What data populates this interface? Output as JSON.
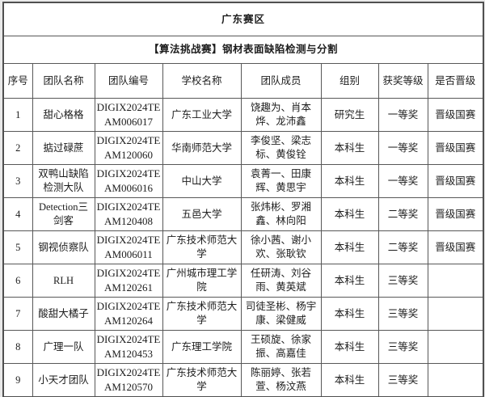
{
  "header": {
    "region_title": "广东赛区",
    "event_title": "【算法挑战赛】钢材表面缺陷检测与分割"
  },
  "style": {
    "border_color": "#585858",
    "background": "#ffffff",
    "text_color": "#1d1d1d"
  },
  "table": {
    "columns": [
      {
        "key": "no",
        "label": "序号"
      },
      {
        "key": "name",
        "label": "团队名称"
      },
      {
        "key": "team_no",
        "label": "团队编号"
      },
      {
        "key": "school",
        "label": "学校名称"
      },
      {
        "key": "members",
        "label": "团队成员"
      },
      {
        "key": "group",
        "label": "组别"
      },
      {
        "key": "award",
        "label": "获奖等级"
      },
      {
        "key": "promote",
        "label": "是否晋级"
      }
    ],
    "rows": [
      {
        "no": "1",
        "name": "甜心格格",
        "team_no": "DIGIX2024TEAM006017",
        "school": "广东工业大学",
        "members": "饶趣为、肖本烨、龙沛鑫",
        "group": "研究生",
        "award": "一等奖",
        "promote": "晋级国赛"
      },
      {
        "no": "2",
        "name": "掂过碌蔗",
        "team_no": "DIGIX2024TEAM120060",
        "school": "华南师范大学",
        "members": "李俊坚、梁志标、黄俊铨",
        "group": "本科生",
        "award": "一等奖",
        "promote": "晋级国赛"
      },
      {
        "no": "3",
        "name": "双鸭山缺陷检测大队",
        "team_no": "DIGIX2024TEAM006016",
        "school": "中山大学",
        "members": "袁菁一、田康辉、黄思宇",
        "group": "本科生",
        "award": "一等奖",
        "promote": "晋级国赛"
      },
      {
        "no": "4",
        "name": "Detection三剑客",
        "team_no": "DIGIX2024TEAM120408",
        "school": "五邑大学",
        "members": "张炜彬、罗湘鑫、林向阳",
        "group": "本科生",
        "award": "二等奖",
        "promote": "晋级国赛"
      },
      {
        "no": "5",
        "name": "钢视侦察队",
        "team_no": "DIGIX2024TEAM006011",
        "school": "广东技术师范大学",
        "members": "徐小茜、谢小欢、张耿钦",
        "group": "本科生",
        "award": "二等奖",
        "promote": "晋级国赛"
      },
      {
        "no": "6",
        "name": "RLH",
        "team_no": "DIGIX2024TEAM120261",
        "school": "广州城市理工学院",
        "members": "任研涛、刘谷雨、黄英斌",
        "group": "本科生",
        "award": "三等奖",
        "promote": ""
      },
      {
        "no": "7",
        "name": "酸甜大橘子",
        "team_no": "DIGIX2024TEAM120264",
        "school": "广东技术师范大学",
        "members": "司徒圣彬、杨宇康、梁健威",
        "group": "本科生",
        "award": "三等奖",
        "promote": ""
      },
      {
        "no": "8",
        "name": "广理一队",
        "team_no": "DIGIX2024TEAM120453",
        "school": "广东理工学院",
        "members": "王硕旋、徐家振、高嘉佳",
        "group": "本科生",
        "award": "三等奖",
        "promote": ""
      },
      {
        "no": "9",
        "name": "小天才团队",
        "team_no": "DIGIX2024TEAM120570",
        "school": "广东技术师范大学",
        "members": "陈丽婷、张若萱、杨汶燕",
        "group": "本科生",
        "award": "三等奖",
        "promote": ""
      }
    ]
  }
}
